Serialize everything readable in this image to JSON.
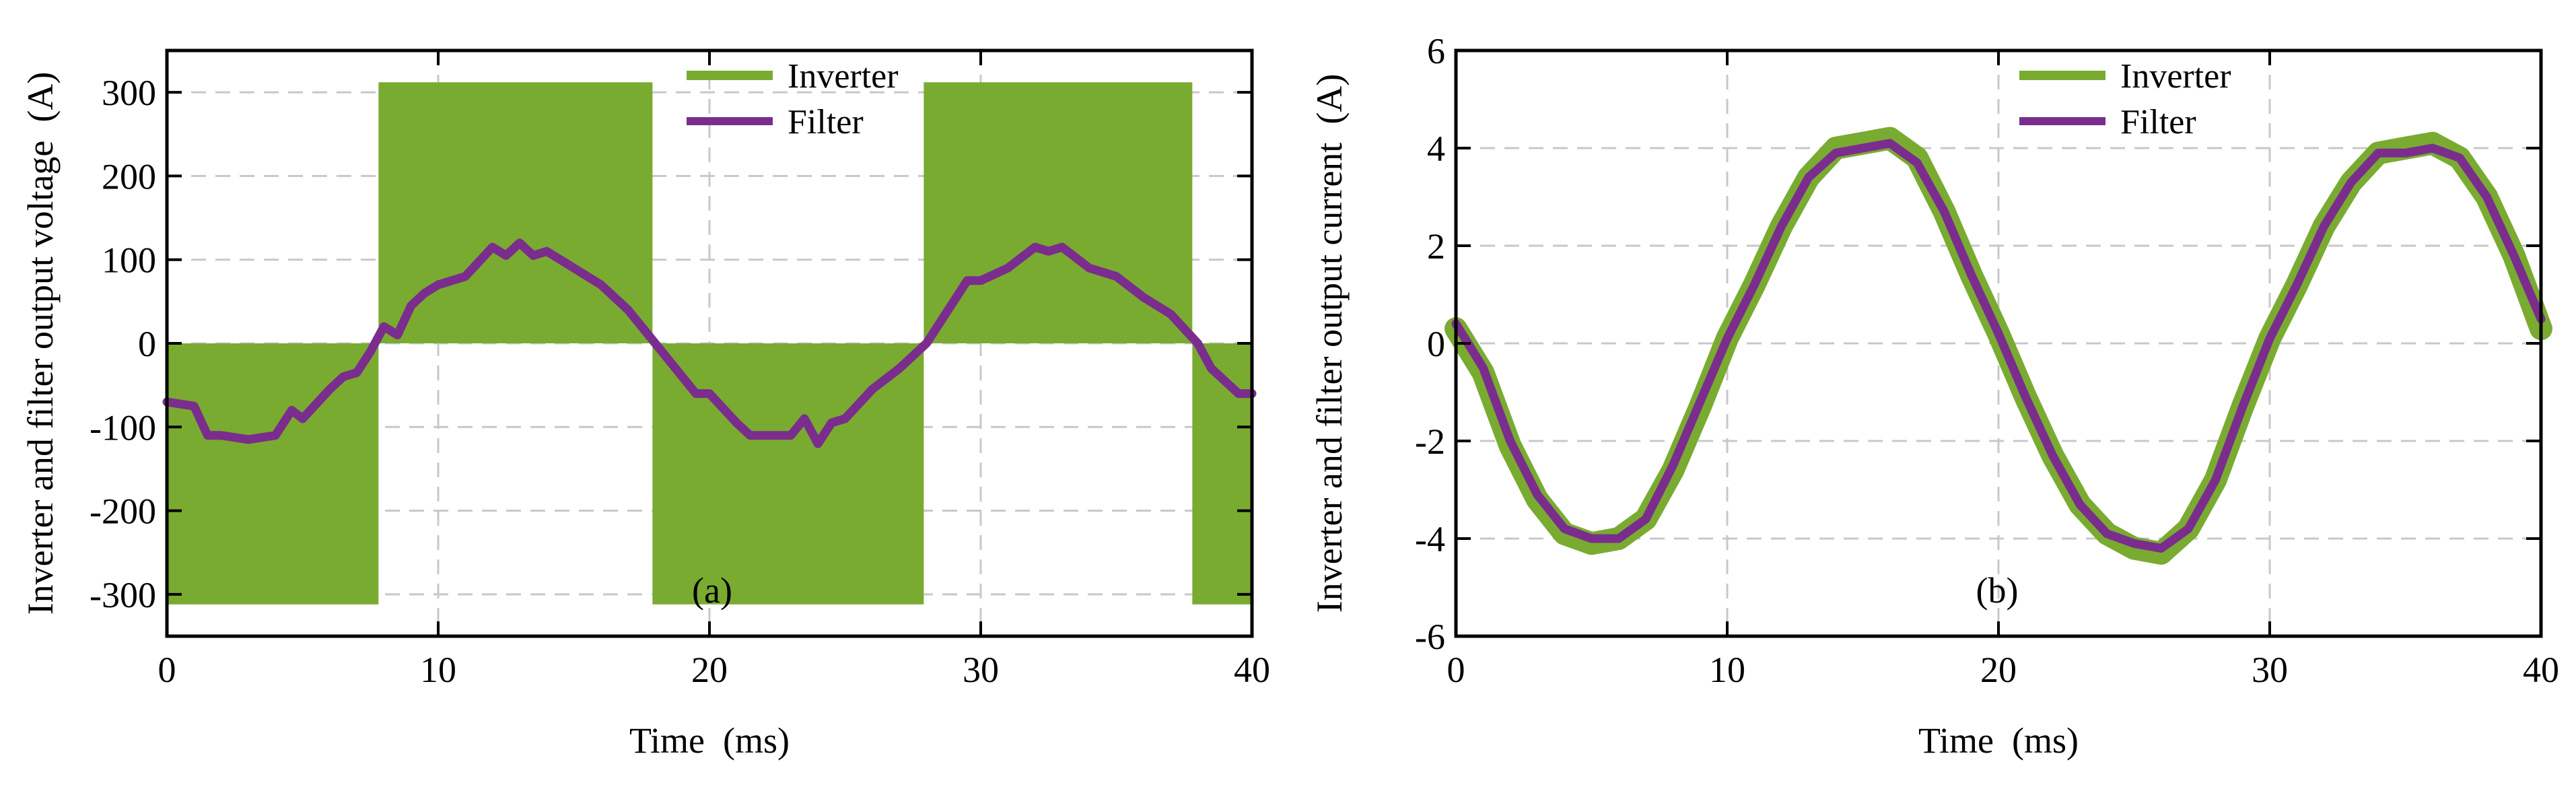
{
  "colors": {
    "inverter": "#7aab31",
    "filter": "#7b2d8e",
    "grid": "#c8c8c8",
    "axis": "#000000"
  },
  "chart_data": [
    {
      "type": "line",
      "panel_label": "(a)",
      "xlabel": "Time  (ms)",
      "ylabel": "Inverter and filter output voltage  (A)",
      "xlim": [
        0,
        40
      ],
      "ylim": [
        -350,
        350
      ],
      "xticks": [
        0,
        10,
        20,
        30,
        40
      ],
      "yticks": [
        -300,
        -200,
        -100,
        0,
        100,
        200,
        300
      ],
      "grid": true,
      "legend_position": "top-center",
      "series": [
        {
          "name": "Inverter",
          "style": "pwm-band",
          "segments": [
            {
              "x_start": 0,
              "x_end": 7.8,
              "y_low": -312,
              "y_high": 0
            },
            {
              "x_start": 7.8,
              "x_end": 17.9,
              "y_low": 0,
              "y_high": 312
            },
            {
              "x_start": 17.9,
              "x_end": 27.9,
              "y_low": -312,
              "y_high": 0
            },
            {
              "x_start": 27.9,
              "x_end": 37.8,
              "y_low": 0,
              "y_high": 312
            },
            {
              "x_start": 37.8,
              "x_end": 40,
              "y_low": -312,
              "y_high": 0
            }
          ]
        },
        {
          "name": "Filter",
          "x": [
            0,
            1,
            1.5,
            2,
            3,
            4,
            4.6,
            5,
            6,
            6.5,
            7,
            7.5,
            8,
            8.5,
            9,
            9.5,
            10,
            11,
            12,
            12.5,
            13,
            13.5,
            14,
            15,
            16,
            17,
            18,
            19,
            19.5,
            20,
            21,
            21.5,
            22,
            23,
            23.5,
            24,
            24.5,
            25,
            26,
            27,
            28,
            29,
            29.5,
            30,
            31,
            32,
            32.5,
            33,
            34,
            35,
            36,
            37,
            38,
            38.5,
            39,
            39.5,
            40
          ],
          "y": [
            -70,
            -75,
            -110,
            -110,
            -115,
            -110,
            -80,
            -90,
            -55,
            -40,
            -35,
            -10,
            20,
            10,
            45,
            60,
            70,
            80,
            115,
            105,
            120,
            105,
            110,
            90,
            70,
            40,
            0,
            -40,
            -60,
            -60,
            -95,
            -110,
            -110,
            -110,
            -90,
            -120,
            -95,
            -90,
            -55,
            -30,
            0,
            50,
            75,
            75,
            90,
            115,
            110,
            115,
            90,
            80,
            55,
            35,
            0,
            -30,
            -45,
            -60,
            -60
          ]
        }
      ]
    },
    {
      "type": "line",
      "panel_label": "(b)",
      "xlabel": "Time  (ms)",
      "ylabel": "Inverter and filter output current  (A)",
      "xlim": [
        0,
        40
      ],
      "ylim": [
        -6,
        6
      ],
      "xticks": [
        0,
        10,
        20,
        30,
        40
      ],
      "yticks": [
        -6,
        -4,
        -2,
        0,
        2,
        4,
        6
      ],
      "grid": true,
      "legend_position": "top-center",
      "series": [
        {
          "name": "Inverter",
          "style": "thick-noisy",
          "x": [
            0,
            1,
            2,
            3,
            4,
            5,
            6,
            7,
            8,
            9,
            10,
            11,
            12,
            13,
            14,
            15,
            16,
            17,
            18,
            19,
            20,
            21,
            22,
            23,
            24,
            25,
            26,
            27,
            28,
            29,
            30,
            31,
            32,
            33,
            34,
            35,
            36,
            37,
            38,
            39,
            40
          ],
          "y": [
            0.3,
            -0.6,
            -2.1,
            -3.2,
            -3.9,
            -4.1,
            -4.0,
            -3.6,
            -2.6,
            -1.3,
            0.1,
            1.2,
            2.4,
            3.4,
            4.0,
            4.1,
            4.2,
            3.8,
            2.7,
            1.4,
            0.2,
            -1.1,
            -2.3,
            -3.3,
            -3.9,
            -4.2,
            -4.3,
            -3.8,
            -2.8,
            -1.3,
            0.1,
            1.2,
            2.4,
            3.3,
            3.9,
            4.0,
            4.1,
            3.8,
            3.0,
            1.8,
            0.3
          ]
        },
        {
          "name": "Filter",
          "x": [
            0,
            1,
            2,
            3,
            4,
            5,
            6,
            7,
            8,
            9,
            10,
            11,
            12,
            13,
            14,
            15,
            16,
            17,
            18,
            19,
            20,
            21,
            22,
            23,
            24,
            25,
            26,
            27,
            28,
            29,
            30,
            31,
            32,
            33,
            34,
            35,
            36,
            37,
            38,
            39,
            40
          ],
          "y": [
            0.4,
            -0.5,
            -2.0,
            -3.1,
            -3.8,
            -4.0,
            -4.0,
            -3.6,
            -2.5,
            -1.2,
            0.1,
            1.2,
            2.4,
            3.4,
            3.9,
            4.0,
            4.1,
            3.7,
            2.7,
            1.4,
            0.2,
            -1.1,
            -2.3,
            -3.3,
            -3.9,
            -4.1,
            -4.2,
            -3.8,
            -2.8,
            -1.3,
            0.1,
            1.2,
            2.4,
            3.3,
            3.9,
            3.9,
            4.0,
            3.8,
            3.0,
            1.8,
            0.5
          ]
        }
      ]
    }
  ]
}
